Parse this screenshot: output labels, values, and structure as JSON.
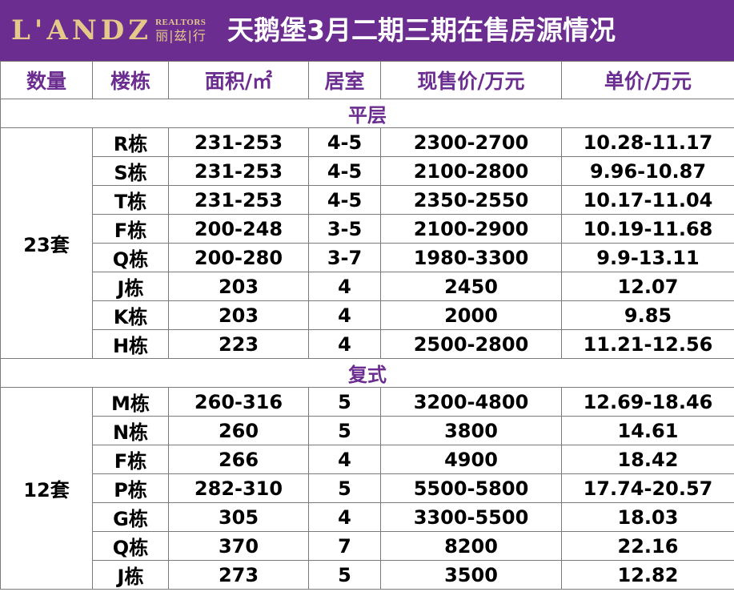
{
  "header": {
    "logo_text": "L'ANDZ",
    "logo_en": "REALTORS",
    "logo_cn": "丽|兹|行",
    "title": "天鹅堡3月二期三期在售房源情况",
    "bg_color": "#6b2d8f",
    "logo_color": "#e4c98b"
  },
  "columns": [
    "数量",
    "楼栋",
    "面积/㎡",
    "居室",
    "现售价/万元",
    "单价/万元"
  ],
  "sections": [
    {
      "title": "平层",
      "count": "23套",
      "rows": [
        {
          "building": "R栋",
          "area": "231-253",
          "rooms": "4-5",
          "price": "2300-2700",
          "unit_price": "10.28-11.17"
        },
        {
          "building": "S栋",
          "area": "231-253",
          "rooms": "4-5",
          "price": "2100-2800",
          "unit_price": "9.96-10.87"
        },
        {
          "building": "T栋",
          "area": "231-253",
          "rooms": "4-5",
          "price": "2350-2550",
          "unit_price": "10.17-11.04"
        },
        {
          "building": "F栋",
          "area": "200-248",
          "rooms": "3-5",
          "price": "2100-2900",
          "unit_price": "10.19-11.68"
        },
        {
          "building": "Q栋",
          "area": "200-280",
          "rooms": "3-7",
          "price": "1980-3300",
          "unit_price": "9.9-13.11"
        },
        {
          "building": "J栋",
          "area": "203",
          "rooms": "4",
          "price": "2450",
          "unit_price": "12.07"
        },
        {
          "building": "K栋",
          "area": "203",
          "rooms": "4",
          "price": "2000",
          "unit_price": "9.85"
        },
        {
          "building": "H栋",
          "area": "223",
          "rooms": "4",
          "price": "2500-2800",
          "unit_price": "11.21-12.56"
        }
      ]
    },
    {
      "title": "复式",
      "count": "12套",
      "rows": [
        {
          "building": "M栋",
          "area": "260-316",
          "rooms": "5",
          "price": "3200-4800",
          "unit_price": "12.69-18.46"
        },
        {
          "building": "N栋",
          "area": "260",
          "rooms": "5",
          "price": "3800",
          "unit_price": "14.61"
        },
        {
          "building": "F栋",
          "area": "266",
          "rooms": "4",
          "price": "4900",
          "unit_price": "18.42"
        },
        {
          "building": "P栋",
          "area": "282-310",
          "rooms": "5",
          "price": "5500-5800",
          "unit_price": "17.74-20.57"
        },
        {
          "building": "G栋",
          "area": "305",
          "rooms": "4",
          "price": "3300-5500",
          "unit_price": "18.03"
        },
        {
          "building": "Q栋",
          "area": "370",
          "rooms": "7",
          "price": "8200",
          "unit_price": "22.16"
        },
        {
          "building": "J栋",
          "area": "273",
          "rooms": "5",
          "price": "3500",
          "unit_price": "12.82"
        }
      ]
    }
  ]
}
